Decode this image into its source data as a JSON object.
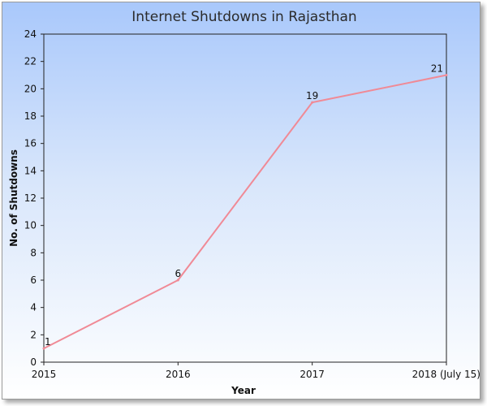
{
  "chart_data": {
    "type": "line",
    "title": "Internet Shutdowns in Rajasthan",
    "xlabel": "Year",
    "ylabel": "No. of Shutdowns",
    "categories": [
      "2015",
      "2016",
      "2017",
      "2018 (July 15)"
    ],
    "series": [
      {
        "values": [
          1,
          6,
          19,
          21
        ],
        "color": "#f08a96"
      }
    ],
    "data_labels": [
      "1",
      "6",
      "19",
      "21"
    ],
    "ylim": [
      0,
      24
    ],
    "yticks": [
      0,
      2,
      4,
      6,
      8,
      10,
      12,
      14,
      16,
      18,
      20,
      22,
      24
    ],
    "grid": false,
    "legend": "none"
  }
}
